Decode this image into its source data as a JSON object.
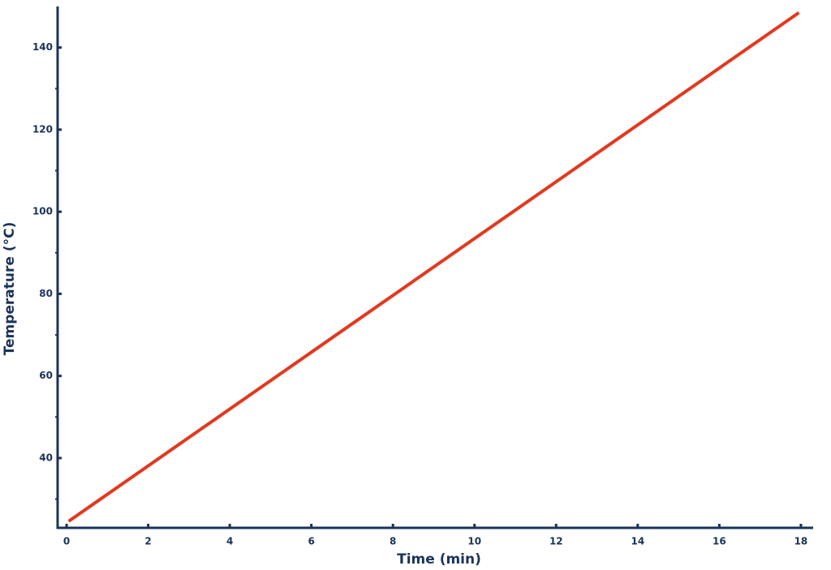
{
  "chart_data": {
    "type": "line",
    "x_label": "Time (min)",
    "y_label": "Temperature (°C)",
    "x": [
      0.05,
      17.95
    ],
    "series": [
      {
        "color": "#e2391f",
        "values": [
          24.6,
          148.5
        ]
      }
    ],
    "xlim": [
      -0.22,
      18.3
    ],
    "ylim": [
      23,
      150
    ],
    "xticks": [
      0,
      2,
      4,
      6,
      8,
      10,
      12,
      14,
      16,
      18
    ],
    "yticks": [
      40,
      60,
      80,
      100,
      120,
      140
    ],
    "y_minor_ticks": [
      30,
      50,
      70,
      90,
      110,
      130
    ],
    "axis_color": "#1b3358"
  }
}
